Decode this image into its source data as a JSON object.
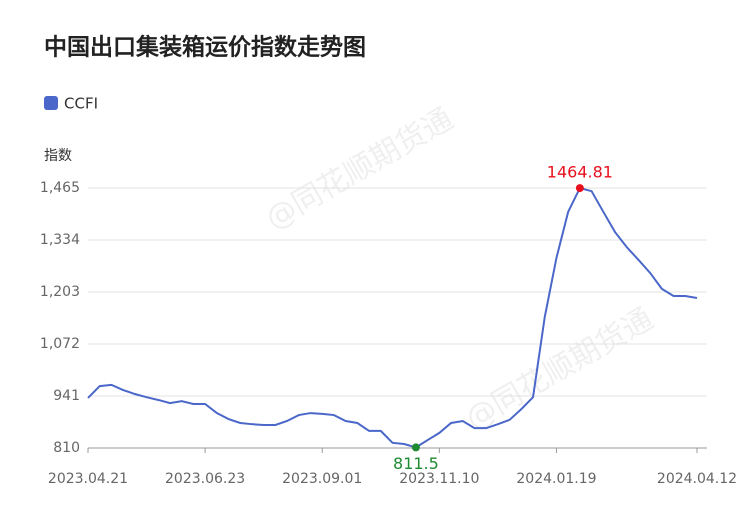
{
  "chart_data": {
    "type": "line",
    "title": "中国出口集装箱运价指数走势图",
    "y_label": "指数",
    "watermark": "@同花顺期货通",
    "categories": [
      "2023.04.21",
      null,
      null,
      null,
      null,
      null,
      null,
      null,
      null,
      null,
      "2023.06.23",
      null,
      null,
      null,
      null,
      null,
      null,
      null,
      null,
      null,
      "2023.09.01",
      null,
      null,
      null,
      null,
      null,
      null,
      null,
      null,
      null,
      "2023.11.10",
      null,
      null,
      null,
      null,
      null,
      null,
      null,
      null,
      null,
      "2024.01.19",
      null,
      null,
      null,
      null,
      null,
      null,
      null,
      null,
      null,
      null,
      null,
      "2024.04.12"
    ],
    "series": [
      {
        "name": "CCFI",
        "color": "#4a67c9",
        "values": [
          936,
          966,
          969,
          956,
          946,
          938,
          931,
          923,
          928,
          921,
          921,
          898,
          883,
          873,
          870,
          868,
          868,
          878,
          893,
          898,
          896,
          893,
          878,
          873,
          853,
          853,
          823,
          820,
          811.5,
          830,
          848,
          873,
          878,
          860,
          860,
          870,
          881,
          908,
          938,
          1140,
          1289,
          1405,
          1464.81,
          1457,
          1405,
          1354,
          1316,
          1284,
          1251,
          1211,
          1193,
          1193,
          1188
        ]
      }
    ],
    "ylim": [
      810,
      1465
    ],
    "yticks": [
      810,
      941,
      {
        "value": 1072,
        "label": "1,072"
      },
      {
        "value": 1203,
        "label": "1,203"
      },
      {
        "value": 1334,
        "label": "1,334"
      },
      {
        "value": 1465,
        "label": "1,465"
      }
    ],
    "grid": true,
    "max_color": "#e8101e",
    "min_color": "#1e8a32"
  }
}
